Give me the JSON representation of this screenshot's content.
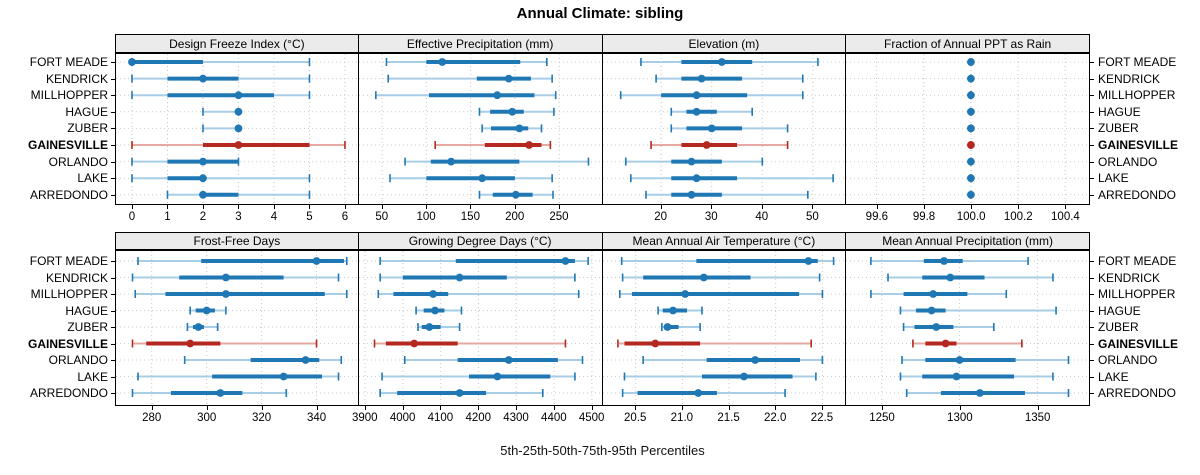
{
  "title": "Annual Climate: sibling",
  "caption": "5th-25th-50th-75th-95th Percentiles",
  "highlight_location": "GAINESVILLE",
  "colors": {
    "series_blue": "#1f77b4",
    "series_blue_light": "#a8cde6",
    "highlight_red": "#b5281f",
    "highlight_red_light": "#e5a8a2",
    "strip_bg": "#ebebeb",
    "panel_border": "#000000",
    "grid": "#c8c8c8",
    "row_guide": "#cccccc"
  },
  "chart_data": {
    "type": "dotplot-intervals",
    "percentiles": [
      5,
      25,
      50,
      75,
      95
    ],
    "rows": [
      "FORT MEADE",
      "KENDRICK",
      "MILLHOPPER",
      "HAGUE",
      "ZUBER",
      "GAINESVILLE",
      "ORLANDO",
      "LAKE",
      "ARREDONDO"
    ],
    "legend_note": "thin line = 5th-95th, thick bar = 25th-75th, dot = median",
    "panels": [
      {
        "band": 0,
        "title": "Design Freeze Index (°C)",
        "xlim": [
          -0.45,
          6.36
        ],
        "tick_values": [
          0,
          1,
          2,
          3,
          4,
          5,
          6
        ],
        "tick_labels": [
          "0",
          "1",
          "2",
          "3",
          "4",
          "5",
          "6"
        ],
        "series": [
          [
            0,
            0,
            0,
            2,
            5
          ],
          [
            0,
            1,
            2,
            3,
            5
          ],
          [
            0,
            1,
            3,
            4,
            5
          ],
          [
            2,
            3,
            3,
            3,
            3
          ],
          [
            2,
            3,
            3,
            3,
            3
          ],
          [
            0,
            2,
            3,
            5,
            6
          ],
          [
            0,
            1,
            2,
            3,
            3
          ],
          [
            0,
            1,
            2,
            2,
            5
          ],
          [
            1,
            2,
            2,
            3,
            5
          ]
        ]
      },
      {
        "band": 0,
        "title": "Effective Precipitation (mm)",
        "xlim": [
          24,
          298
        ],
        "tick_values": [
          50,
          100,
          150,
          200,
          250
        ],
        "tick_labels": [
          "50",
          "100",
          "150",
          "200",
          "250"
        ],
        "series": [
          [
            55,
            100,
            118,
            206,
            236
          ],
          [
            57,
            157,
            193,
            218,
            242
          ],
          [
            43,
            103,
            180,
            222,
            246
          ],
          [
            160,
            172,
            197,
            210,
            244
          ],
          [
            163,
            173,
            205,
            215,
            230
          ],
          [
            110,
            166,
            216,
            230,
            240
          ],
          [
            76,
            105,
            128,
            205,
            283
          ],
          [
            59,
            100,
            163,
            200,
            242
          ],
          [
            160,
            175,
            201,
            220,
            243
          ]
        ]
      },
      {
        "band": 0,
        "title": "Elevation (m)",
        "xlim": [
          8.5,
          56.5
        ],
        "tick_values": [
          20,
          30,
          40,
          50
        ],
        "tick_labels": [
          "20",
          "30",
          "40",
          "50"
        ],
        "series": [
          [
            16,
            24,
            32,
            38,
            51
          ],
          [
            19,
            24,
            28,
            36,
            48
          ],
          [
            12,
            20,
            27,
            37,
            48
          ],
          [
            22,
            25,
            27,
            31,
            38
          ],
          [
            22,
            25,
            30,
            36,
            45
          ],
          [
            18,
            24,
            29,
            35,
            45
          ],
          [
            13,
            22,
            26,
            32,
            40
          ],
          [
            14,
            22,
            27,
            35,
            54
          ],
          [
            17,
            22,
            26,
            32,
            49
          ]
        ]
      },
      {
        "band": 0,
        "title": "Fraction of Annual PPT as Rain",
        "xlim": [
          99.47,
          100.5
        ],
        "tick_values": [
          99.6,
          99.8,
          100.0,
          100.2,
          100.4
        ],
        "tick_labels": [
          "99.6",
          "99.8",
          "100.0",
          "100.2",
          "100.4"
        ],
        "series": [
          [
            100,
            100,
            100,
            100,
            100
          ],
          [
            100,
            100,
            100,
            100,
            100
          ],
          [
            100,
            100,
            100,
            100,
            100
          ],
          [
            100,
            100,
            100,
            100,
            100
          ],
          [
            100,
            100,
            100,
            100,
            100
          ],
          [
            100,
            100,
            100,
            100,
            100
          ],
          [
            100,
            100,
            100,
            100,
            100
          ],
          [
            100,
            100,
            100,
            100,
            100
          ],
          [
            100,
            100,
            100,
            100,
            100
          ]
        ]
      },
      {
        "band": 1,
        "title": "Frost-Free Days",
        "xlim": [
          267,
          355
        ],
        "tick_values": [
          280,
          300,
          320,
          340
        ],
        "tick_labels": [
          "280",
          "300",
          "320",
          "340"
        ],
        "series": [
          [
            275,
            298,
            340,
            350,
            351
          ],
          [
            273,
            290,
            307,
            328,
            348
          ],
          [
            274,
            285,
            307,
            343,
            351
          ],
          [
            294,
            296,
            300,
            303,
            307
          ],
          [
            293,
            295,
            297,
            299,
            304
          ],
          [
            273,
            278,
            294,
            305,
            340
          ],
          [
            292,
            316,
            336,
            341,
            349
          ],
          [
            275,
            302,
            328,
            342,
            348
          ],
          [
            273,
            287,
            305,
            313,
            329
          ]
        ]
      },
      {
        "band": 1,
        "title": "Growing Degree Days (°C)",
        "xlim": [
          3884,
          4526
        ],
        "tick_values": [
          3900,
          4000,
          4100,
          4200,
          4300,
          4400,
          4500
        ],
        "tick_labels": [
          "3900",
          "4000",
          "4100",
          "4200",
          "4300",
          "4400",
          "4500"
        ],
        "series": [
          [
            3940,
            4140,
            4430,
            4455,
            4490
          ],
          [
            3940,
            4000,
            4150,
            4275,
            4455
          ],
          [
            3935,
            3975,
            4080,
            4120,
            4465
          ],
          [
            4035,
            4055,
            4085,
            4110,
            4155
          ],
          [
            4040,
            4050,
            4070,
            4100,
            4150
          ],
          [
            3925,
            3955,
            4030,
            4145,
            4430
          ],
          [
            4005,
            4145,
            4280,
            4410,
            4475
          ],
          [
            3945,
            4175,
            4250,
            4390,
            4455
          ],
          [
            3940,
            3985,
            4150,
            4220,
            4370
          ]
        ]
      },
      {
        "band": 1,
        "title": "Mean Annual Air Temperature (°C)",
        "xlim": [
          20.15,
          22.75
        ],
        "tick_values": [
          20.5,
          21.0,
          21.5,
          22.0,
          22.5
        ],
        "tick_labels": [
          "20.5",
          "21.0",
          "21.5",
          "22.0",
          "22.5"
        ],
        "series": [
          [
            20.35,
            21.15,
            22.35,
            22.45,
            22.62
          ],
          [
            20.36,
            20.58,
            21.23,
            21.73,
            22.47
          ],
          [
            20.33,
            20.46,
            21.03,
            22.25,
            22.5
          ],
          [
            20.74,
            20.79,
            20.9,
            21.05,
            21.21
          ],
          [
            20.78,
            20.81,
            20.84,
            20.96,
            21.19
          ],
          [
            20.31,
            20.38,
            20.71,
            21.19,
            22.38
          ],
          [
            20.58,
            21.26,
            21.78,
            22.26,
            22.5
          ],
          [
            20.38,
            21.21,
            21.66,
            22.18,
            22.43
          ],
          [
            20.36,
            20.52,
            21.17,
            21.37,
            22.1
          ]
        ]
      },
      {
        "band": 1,
        "title": "Mean Annual Precipitation (mm)",
        "xlim": [
          1227,
          1383
        ],
        "tick_values": [
          1250,
          1300,
          1350
        ],
        "tick_labels": [
          "1250",
          "1300",
          "1350"
        ],
        "series": [
          [
            1243,
            1277,
            1290,
            1302,
            1344
          ],
          [
            1254,
            1276,
            1294,
            1316,
            1360
          ],
          [
            1243,
            1264,
            1283,
            1305,
            1330
          ],
          [
            1262,
            1272,
            1282,
            1291,
            1362
          ],
          [
            1264,
            1271,
            1285,
            1296,
            1322
          ],
          [
            1270,
            1278,
            1291,
            1298,
            1340
          ],
          [
            1263,
            1278,
            1300,
            1336,
            1370
          ],
          [
            1262,
            1276,
            1298,
            1335,
            1360
          ],
          [
            1266,
            1288,
            1313,
            1342,
            1370
          ]
        ]
      }
    ]
  }
}
